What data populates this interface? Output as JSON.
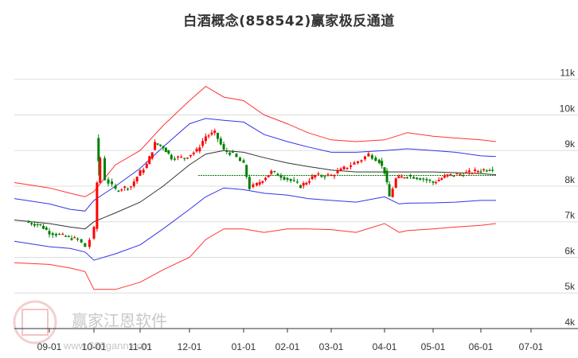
{
  "title": "白酒概念(858542)赢家极反通道",
  "watermark": {
    "brand": "赢家江恩软件",
    "url": "www.360gann.com",
    "seal_chars": [
      "江",
      "赢",
      "恩",
      "家"
    ]
  },
  "colors": {
    "up_candle": "#ff0000",
    "down_candle": "#008000",
    "outer_band": "#ff3333",
    "inner_band": "#3333ee",
    "middle_line": "#333333",
    "projection": "#008000",
    "grid": "#dddddd",
    "axis": "#333333"
  },
  "chart_data": {
    "type": "candlestick",
    "title": "白酒概念(858542)赢家极反通道",
    "xlabel": "",
    "ylabel": "",
    "ylim": [
      4000,
      11500
    ],
    "grid": true,
    "y_axis_position": "right",
    "y_ticks": [
      "4k",
      "5k",
      "6k",
      "7k",
      "8k",
      "9k",
      "10k",
      "11k"
    ],
    "y_tick_values": [
      4000,
      5000,
      6000,
      7000,
      8000,
      9000,
      10000,
      11000
    ],
    "x_ticks": [
      "09-01",
      "10-01",
      "11-01",
      "12-01",
      "01-01",
      "02-01",
      "03-01",
      "04-01",
      "05-01",
      "06-01",
      "07-01"
    ],
    "legend": [],
    "series": [
      {
        "name": "outer_upper_band",
        "color": "#ff3333",
        "x": [
          "08-15",
          "09-01",
          "09-15",
          "09-25",
          "10-01",
          "10-15",
          "11-01",
          "11-15",
          "12-01",
          "12-10",
          "12-20",
          "01-01",
          "01-15",
          "02-01",
          "02-15",
          "03-01",
          "03-15",
          "04-01",
          "04-15",
          "05-01",
          "05-15",
          "06-01",
          "06-10"
        ],
        "values": [
          8100,
          7950,
          7800,
          7700,
          7850,
          8600,
          9000,
          9700,
          10400,
          10800,
          10500,
          10400,
          10000,
          9750,
          9500,
          9300,
          9250,
          9300,
          9500,
          9400,
          9350,
          9300,
          9250
        ]
      },
      {
        "name": "inner_upper_band",
        "color": "#3333ee",
        "x": [
          "08-15",
          "09-01",
          "09-15",
          "09-25",
          "10-01",
          "10-15",
          "11-01",
          "11-15",
          "12-01",
          "12-10",
          "12-20",
          "01-01",
          "01-15",
          "02-01",
          "02-15",
          "03-01",
          "03-15",
          "04-01",
          "04-15",
          "05-01",
          "05-15",
          "06-01",
          "06-10"
        ],
        "values": [
          7650,
          7500,
          7350,
          7300,
          7600,
          8000,
          8500,
          9100,
          9750,
          9900,
          9850,
          9800,
          9450,
          9250,
          9100,
          8950,
          8950,
          9000,
          9050,
          9000,
          8950,
          8850,
          8830
        ]
      },
      {
        "name": "middle_line",
        "color": "#333333",
        "x": [
          "08-15",
          "09-01",
          "09-15",
          "09-25",
          "10-01",
          "10-15",
          "11-01",
          "11-15",
          "12-01",
          "12-10",
          "12-20",
          "01-01",
          "01-15",
          "02-01",
          "02-15",
          "03-01",
          "03-15",
          "04-01",
          "04-15",
          "05-01",
          "05-15",
          "06-01",
          "06-10"
        ],
        "values": [
          7050,
          6950,
          6850,
          6800,
          7000,
          7250,
          7550,
          8000,
          8600,
          8900,
          9000,
          8950,
          8800,
          8650,
          8550,
          8450,
          8400,
          8400,
          8400,
          8400,
          8380,
          8350,
          8320
        ]
      },
      {
        "name": "inner_lower_band",
        "color": "#3333ee",
        "x": [
          "08-15",
          "09-01",
          "09-15",
          "09-25",
          "10-01",
          "10-15",
          "11-01",
          "11-15",
          "12-01",
          "12-10",
          "12-20",
          "01-01",
          "01-15",
          "02-01",
          "02-15",
          "03-01",
          "03-15",
          "04-01",
          "04-10",
          "04-15",
          "05-01",
          "05-15",
          "06-01",
          "06-10"
        ],
        "values": [
          6450,
          6300,
          6250,
          6150,
          5920,
          6100,
          6350,
          6800,
          7350,
          7700,
          7950,
          7900,
          7800,
          7750,
          7650,
          7600,
          7550,
          7700,
          7500,
          7520,
          7530,
          7550,
          7600,
          7600
        ]
      },
      {
        "name": "outer_lower_band",
        "color": "#ff3333",
        "x": [
          "08-15",
          "09-01",
          "09-15",
          "09-25",
          "10-01",
          "10-15",
          "11-01",
          "11-15",
          "12-01",
          "12-10",
          "12-20",
          "01-01",
          "01-15",
          "02-01",
          "02-15",
          "03-01",
          "03-15",
          "04-01",
          "04-10",
          "04-15",
          "05-01",
          "05-15",
          "06-01",
          "06-10"
        ],
        "values": [
          5850,
          5800,
          5700,
          5600,
          5100,
          5100,
          5300,
          5650,
          6000,
          6500,
          6800,
          6800,
          6700,
          6800,
          6800,
          6780,
          6700,
          6950,
          6700,
          6750,
          6800,
          6850,
          6900,
          6950
        ]
      },
      {
        "name": "projection_line",
        "color": "#008000",
        "style": "dashed",
        "x": [
          "06-10",
          "07-20"
        ],
        "values": [
          8300,
          8300
        ]
      }
    ],
    "candles_summary": {
      "start": {
        "date": "08-15",
        "close": 7000
      },
      "low_sep": {
        "date": "09-25",
        "low": 6250
      },
      "spike_oct": {
        "date": "10-05",
        "high": 9450,
        "note": "large green candle after gap up"
      },
      "high_nov": {
        "date": "11-10",
        "high": 9700
      },
      "peak_dec": {
        "date": "12-15",
        "high": 9750
      },
      "low_jan": {
        "date": "01-05",
        "low": 7850
      },
      "high_mar": {
        "date": "03-20",
        "high": 8950
      },
      "low_apr": {
        "date": "04-05",
        "low": 7550
      },
      "last": {
        "date": "06-10",
        "close": 8300
      }
    }
  }
}
